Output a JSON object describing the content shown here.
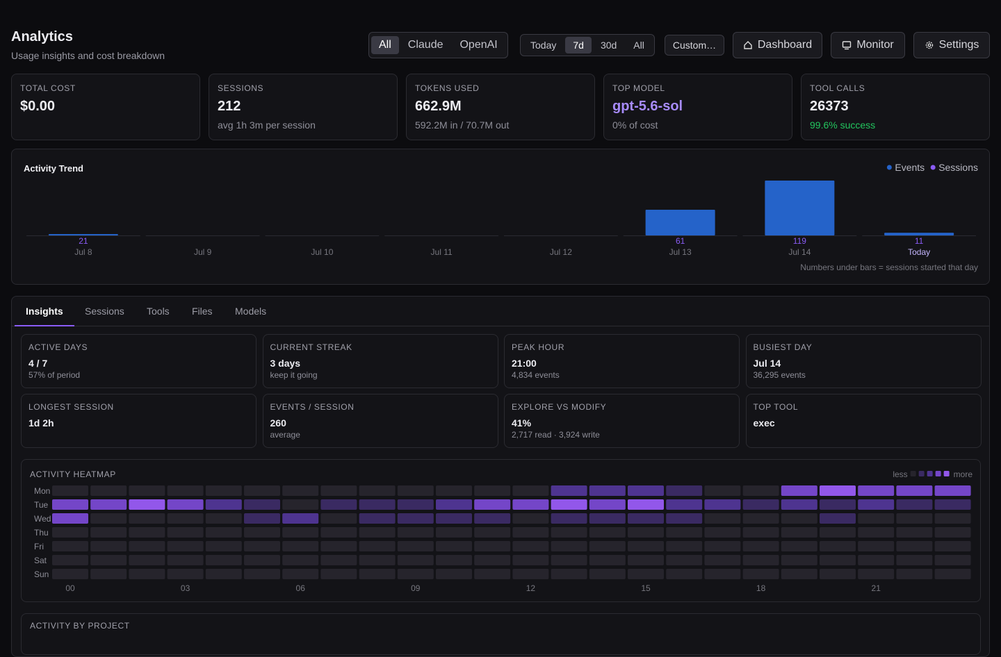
{
  "header": {
    "title": "Analytics",
    "subtitle": "Usage insights and cost breakdown"
  },
  "filters": {
    "providers": [
      "All",
      "Claude",
      "OpenAI"
    ],
    "ranges": [
      "Today",
      "7d",
      "30d",
      "All"
    ],
    "custom": "Custom…",
    "actions": [
      "Dashboard",
      "Monitor",
      "Settings"
    ]
  },
  "stats": [
    {
      "label": "TOTAL COST",
      "value": "$0.00"
    },
    {
      "label": "SESSIONS",
      "value": "212",
      "sub": "avg 1h 3m per session"
    },
    {
      "label": "TOKENS USED",
      "value": "662.9M",
      "sub": "592.2M in / 70.7M out"
    },
    {
      "label": "TOP MODEL",
      "value": "gpt-5.6-sol",
      "sub": "0% of cost"
    },
    {
      "label": "TOOL CALLS",
      "value": "26373",
      "sub": "99.6% success"
    }
  ],
  "chart_data": {
    "type": "bar",
    "title": "Activity Trend",
    "categories": [
      "Jul 8",
      "Jul 9",
      "Jul 10",
      "Jul 11",
      "Jul 12",
      "Jul 13",
      "Jul 14",
      "Today"
    ],
    "series": [
      {
        "name": "Events",
        "color": "#2563c9",
        "values": [
          900,
          0,
          0,
          0,
          0,
          17000,
          36295,
          1800
        ]
      },
      {
        "name": "Sessions",
        "color": "#8b5cf6",
        "values": [
          21,
          null,
          null,
          null,
          null,
          61,
          119,
          11
        ]
      }
    ],
    "note": "Numbers under bars = sessions started that day"
  },
  "tabs": [
    "Insights",
    "Sessions",
    "Tools",
    "Files",
    "Models"
  ],
  "insights": [
    {
      "label": "ACTIVE DAYS",
      "value": "4 / 7",
      "sub": "57% of period"
    },
    {
      "label": "CURRENT STREAK",
      "value": "3 days",
      "sub": "keep it going"
    },
    {
      "label": "PEAK HOUR",
      "value": "21:00",
      "sub": "4,834 events"
    },
    {
      "label": "BUSIEST DAY",
      "value": "Jul 14",
      "sub": "36,295 events"
    },
    {
      "label": "LONGEST SESSION",
      "value": "1d 2h"
    },
    {
      "label": "EVENTS / SESSION",
      "value": "260",
      "sub": "average"
    },
    {
      "label": "EXPLORE VS MODIFY",
      "value": "41%",
      "sub": "2,717 read · 3,924 write"
    },
    {
      "label": "TOP TOOL",
      "value": "exec"
    }
  ],
  "heatmap": {
    "title": "ACTIVITY HEATMAP",
    "days": [
      "Mon",
      "Tue",
      "Wed",
      "Thu",
      "Fri",
      "Sat",
      "Sun"
    ],
    "hour_labels": [
      "00",
      "03",
      "06",
      "09",
      "12",
      "15",
      "18",
      "21"
    ],
    "legend": {
      "less": "less",
      "more": "more"
    },
    "colors": [
      "#26242c",
      "#3a2a62",
      "#4e3490",
      "#7446c8",
      "#9257ea"
    ],
    "levels": [
      [
        0,
        0,
        0,
        0,
        0,
        0,
        0,
        0,
        0,
        0,
        0,
        0,
        0,
        2,
        2,
        2,
        1,
        0,
        0,
        3,
        4,
        3,
        3,
        3
      ],
      [
        3,
        3,
        4,
        3,
        2,
        1,
        0,
        1,
        1,
        1,
        2,
        3,
        3,
        4,
        3,
        4,
        2,
        2,
        1,
        2,
        1,
        2,
        1,
        1
      ],
      [
        3,
        0,
        0,
        0,
        0,
        1,
        2,
        0,
        1,
        1,
        1,
        1,
        0,
        1,
        1,
        1,
        1,
        0,
        0,
        0,
        1,
        0,
        0,
        0
      ],
      [
        0,
        0,
        0,
        0,
        0,
        0,
        0,
        0,
        0,
        0,
        0,
        0,
        0,
        0,
        0,
        0,
        0,
        0,
        0,
        0,
        0,
        0,
        0,
        0
      ],
      [
        0,
        0,
        0,
        0,
        0,
        0,
        0,
        0,
        0,
        0,
        0,
        0,
        0,
        0,
        0,
        0,
        0,
        0,
        0,
        0,
        0,
        0,
        0,
        0
      ],
      [
        0,
        0,
        0,
        0,
        0,
        0,
        0,
        0,
        0,
        0,
        0,
        0,
        0,
        0,
        0,
        0,
        0,
        0,
        0,
        0,
        0,
        0,
        0,
        0
      ],
      [
        0,
        0,
        0,
        0,
        0,
        0,
        0,
        0,
        0,
        0,
        0,
        0,
        0,
        0,
        0,
        0,
        0,
        0,
        0,
        0,
        0,
        0,
        0,
        0
      ]
    ]
  },
  "next_section": {
    "title": "ACTIVITY BY PROJECT"
  }
}
